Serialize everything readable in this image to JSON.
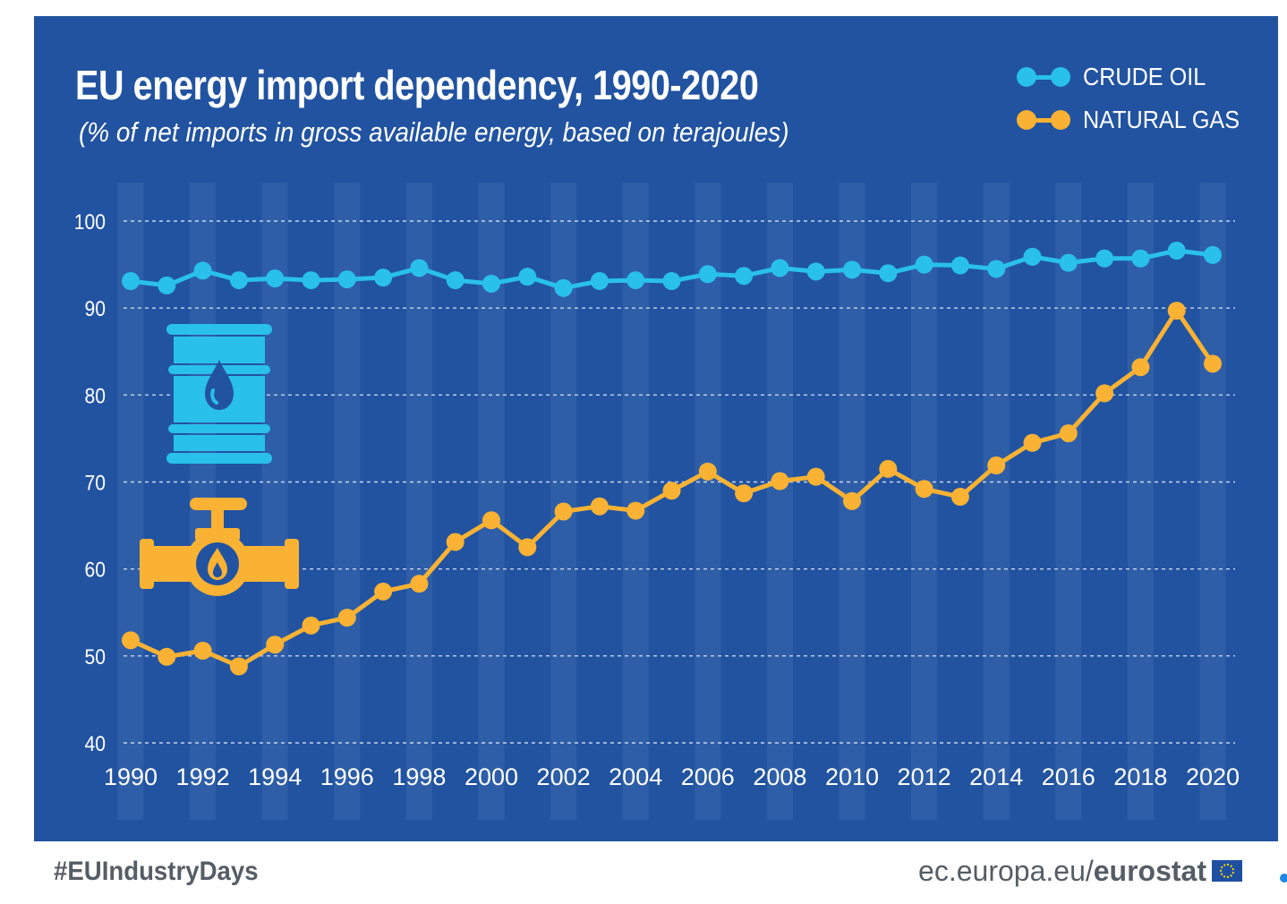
{
  "header": {
    "title": "EU energy import dependency, 1990-2020",
    "subtitle": "(% of net imports in gross available energy, based on terajoules)"
  },
  "legend": {
    "crude_oil": "CRUDE OIL",
    "natural_gas": "NATURAL GAS"
  },
  "icons": [
    "oil-barrel-icon",
    "gas-pipe-valve-icon"
  ],
  "colors": {
    "background": "#2153a1",
    "stripe": "#3a67ad",
    "crude_oil": "#29c0ec",
    "natural_gas": "#f9b233",
    "grid": "#c8d4ea",
    "text": "#ffffff",
    "footer_text": "#555d66"
  },
  "chart_data": {
    "type": "line",
    "title": "EU energy import dependency, 1990-2020",
    "subtitle": "(% of net imports in gross available energy, based on terajoules)",
    "xlabel": "",
    "ylabel": "",
    "ylim": [
      40,
      100
    ],
    "yticks": [
      40,
      50,
      60,
      70,
      80,
      90,
      100
    ],
    "xticks": [
      1990,
      1992,
      1994,
      1996,
      1998,
      2000,
      2002,
      2004,
      2006,
      2008,
      2010,
      2012,
      2014,
      2016,
      2018,
      2020
    ],
    "x": [
      1990,
      1991,
      1992,
      1993,
      1994,
      1995,
      1996,
      1997,
      1998,
      1999,
      2000,
      2001,
      2002,
      2003,
      2004,
      2005,
      2006,
      2007,
      2008,
      2009,
      2010,
      2011,
      2012,
      2013,
      2014,
      2015,
      2016,
      2017,
      2018,
      2019,
      2020
    ],
    "grid": "horizontal dashed",
    "legend_position": "top-right",
    "series": [
      {
        "name": "CRUDE OIL",
        "color": "#29c0ec",
        "values": [
          93.1,
          92.6,
          94.3,
          93.2,
          93.4,
          93.2,
          93.3,
          93.5,
          94.6,
          93.2,
          92.8,
          93.6,
          92.3,
          93.1,
          93.2,
          93.1,
          93.9,
          93.7,
          94.6,
          94.2,
          94.4,
          94.0,
          95.0,
          94.9,
          94.5,
          95.9,
          95.2,
          95.7,
          95.7,
          96.6,
          96.1
        ]
      },
      {
        "name": "NATURAL GAS",
        "color": "#f9b233",
        "values": [
          51.8,
          49.9,
          50.6,
          48.8,
          51.3,
          53.5,
          54.4,
          57.4,
          58.3,
          63.1,
          65.6,
          62.5,
          66.6,
          67.2,
          66.7,
          69.0,
          71.2,
          68.7,
          70.1,
          70.6,
          67.8,
          71.5,
          69.2,
          68.3,
          71.9,
          74.5,
          75.6,
          80.2,
          83.2,
          89.7,
          83.6
        ]
      }
    ]
  },
  "footer": {
    "hashtag": "#EUIndustryDays",
    "site_prefix": "ec.europa.eu/",
    "site_brand": "eurostat"
  }
}
